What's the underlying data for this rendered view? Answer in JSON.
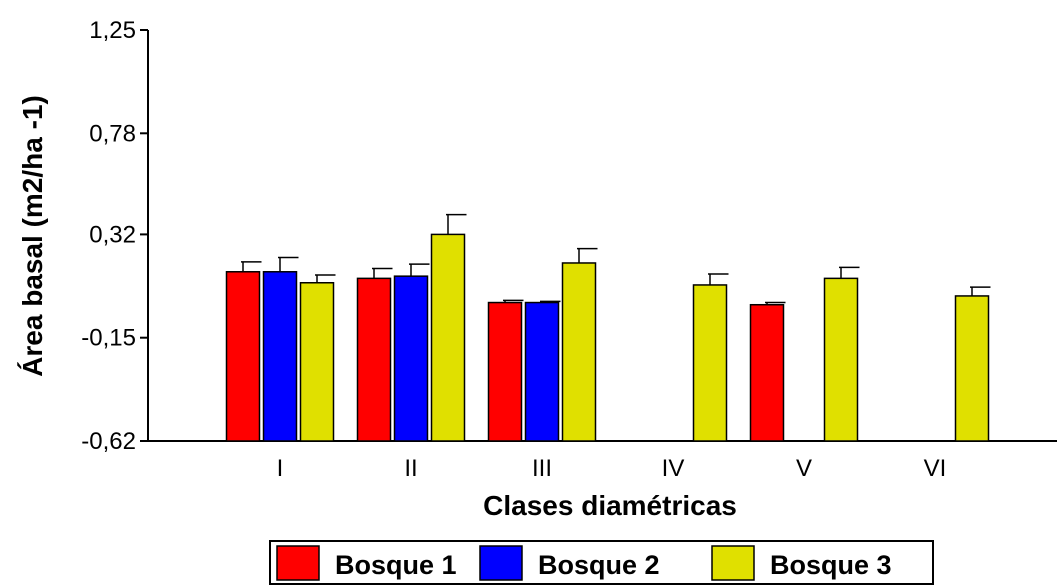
{
  "chart_data": {
    "type": "bar",
    "title": "",
    "xlabel": "Clases diamétricas",
    "ylabel": "Área basal (m2/ha -1)",
    "ylim": [
      -0.62,
      1.25
    ],
    "yticks": [
      "1,25",
      "0,78",
      "0,32",
      "-0,15",
      "-0,62"
    ],
    "ytick_values": [
      1.25,
      0.78,
      0.32,
      -0.15,
      -0.62
    ],
    "categories": [
      "I",
      "II",
      "III",
      "IV",
      "V",
      "VI"
    ],
    "grid": false,
    "legend_position": "bottom-center",
    "series": [
      {
        "name": "Bosque 1",
        "color": "#ff0000",
        "values": [
          0.15,
          0.12,
          0.01,
          null,
          0.0,
          null
        ],
        "errors": [
          0.045,
          0.045,
          0.01,
          null,
          0.01,
          null
        ]
      },
      {
        "name": "Bosque 2",
        "color": "#0000ff",
        "values": [
          0.15,
          0.13,
          0.01,
          null,
          null,
          null
        ],
        "errors": [
          0.065,
          0.055,
          0.005,
          null,
          null,
          null
        ]
      },
      {
        "name": "Bosque 3",
        "color": "#e0e000",
        "values": [
          0.1,
          0.32,
          0.19,
          0.09,
          0.12,
          0.04
        ],
        "errors": [
          0.035,
          0.09,
          0.065,
          0.05,
          0.05,
          0.04
        ]
      }
    ]
  }
}
